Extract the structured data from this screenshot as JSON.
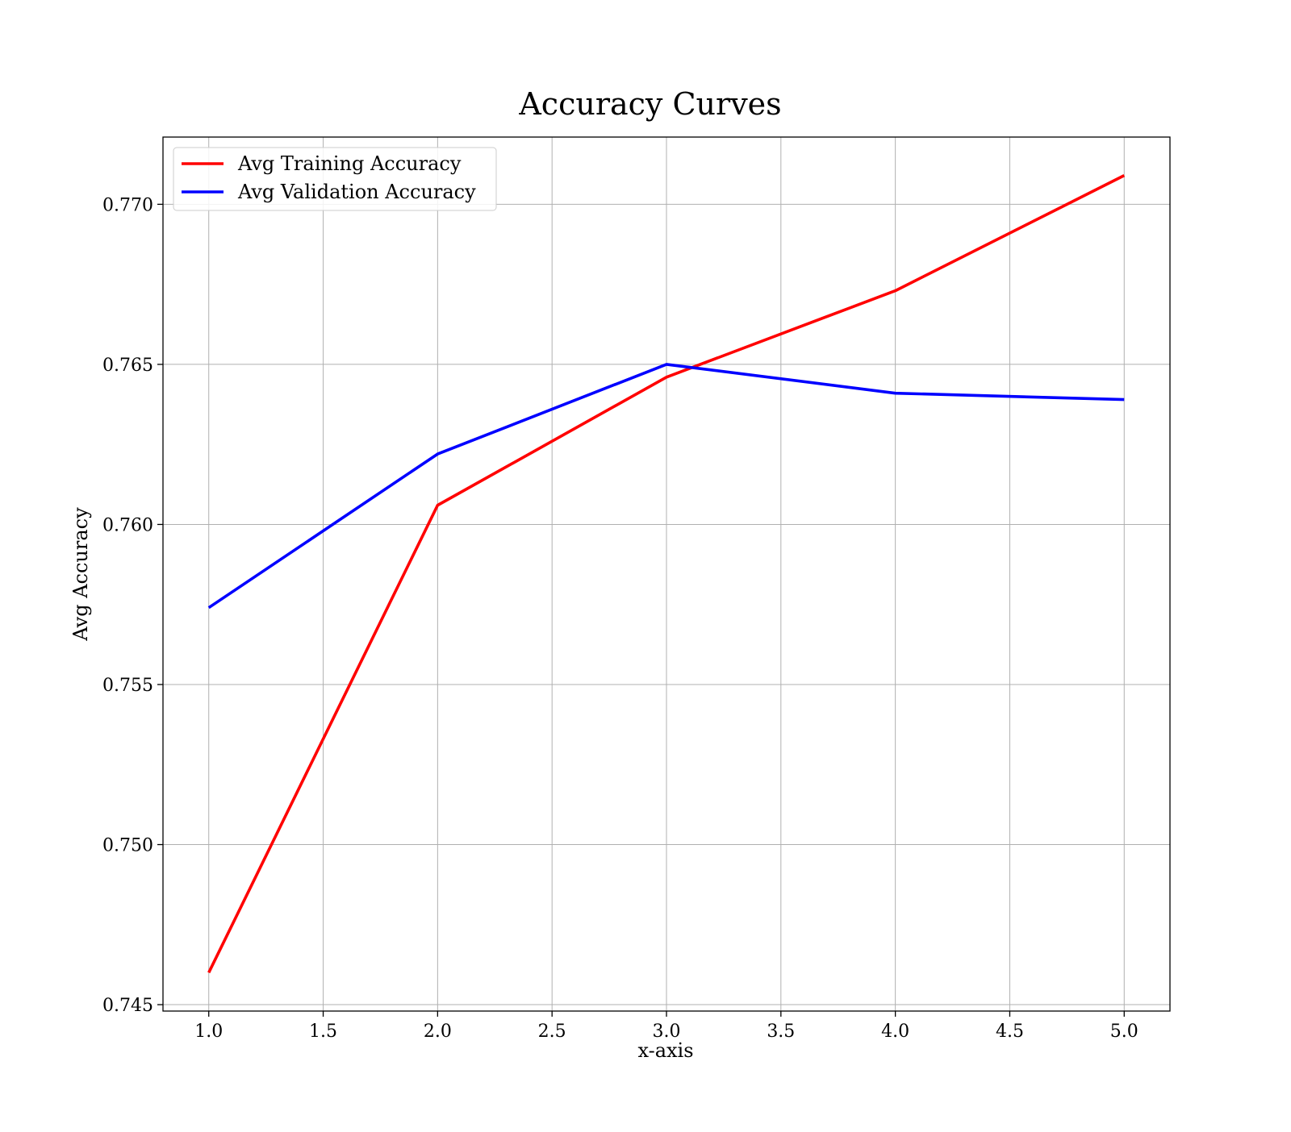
{
  "chart_data": {
    "type": "line",
    "title": "Accuracy Curves",
    "xlabel": "x-axis",
    "ylabel": "Avg Accuracy",
    "x": [
      1,
      2,
      3,
      4,
      5
    ],
    "series": [
      {
        "name": "Avg Training Accuracy",
        "color": "#ff0000",
        "values": [
          0.746,
          0.7606,
          0.7646,
          0.7673,
          0.7709
        ]
      },
      {
        "name": "Avg Validation Accuracy",
        "color": "#0000ff",
        "values": [
          0.7574,
          0.7622,
          0.765,
          0.7641,
          0.7639
        ]
      }
    ],
    "xlim": [
      0.8,
      5.2
    ],
    "ylim": [
      0.7448,
      0.7721
    ],
    "xticks": [
      "1.0",
      "1.5",
      "2.0",
      "2.5",
      "3.0",
      "3.5",
      "4.0",
      "4.5",
      "5.0"
    ],
    "yticks": [
      "0.745",
      "0.750",
      "0.755",
      "0.760",
      "0.765",
      "0.770"
    ],
    "grid": true,
    "legend_position": "top-left"
  }
}
